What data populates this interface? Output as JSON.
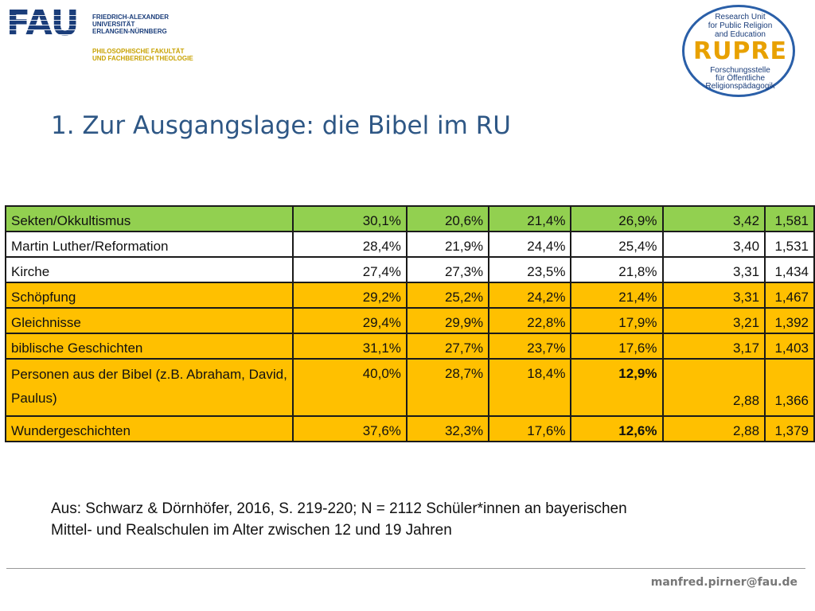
{
  "header": {
    "fau_mark": "FAU",
    "fau_name_lines": [
      "FRIEDRICH-ALEXANDER",
      "UNIVERSITÄT",
      "ERLANGEN-NÜRNBERG"
    ],
    "fau_faculty_lines": [
      "PHILOSOPHISCHE FAKULTÄT",
      "UND FACHBEREICH THEOLOGIE"
    ],
    "rupre_top_lines": [
      "Research Unit",
      "for Public Religion",
      "and Education"
    ],
    "rupre_word": "RUPRE",
    "rupre_bottom_lines": [
      "Forschungsstelle",
      "für Öffentliche",
      "Religionspädagogik"
    ]
  },
  "title": "1. Zur Ausgangslage: die Bibel im RU",
  "colors": {
    "green": "#92d050",
    "orange": "#ffc000",
    "white": "#ffffff",
    "title": "#2e5785"
  },
  "table": {
    "rows": [
      {
        "label": "Sekten/Okkultismus",
        "v1": "30,1%",
        "v2": "20,6%",
        "v3": "21,4%",
        "v4": "26,9%",
        "mean": "3,42",
        "sd": "1,581",
        "color": "green",
        "bold_v4": false
      },
      {
        "label": "Martin Luther/Reformation",
        "v1": "28,4%",
        "v2": "21,9%",
        "v3": "24,4%",
        "v4": "25,4%",
        "mean": "3,40",
        "sd": "1,531",
        "color": "white",
        "bold_v4": false
      },
      {
        "label": "Kirche",
        "v1": "27,4%",
        "v2": "27,3%",
        "v3": "23,5%",
        "v4": "21,8%",
        "mean": "3,31",
        "sd": "1,434",
        "color": "white",
        "bold_v4": false
      },
      {
        "label": "Schöpfung",
        "v1": "29,2%",
        "v2": "25,2%",
        "v3": "24,2%",
        "v4": "21,4%",
        "mean": "3,31",
        "sd": "1,467",
        "color": "orange",
        "bold_v4": false
      },
      {
        "label": "Gleichnisse",
        "v1": "29,4%",
        "v2": "29,9%",
        "v3": "22,8%",
        "v4": "17,9%",
        "mean": "3,21",
        "sd": "1,392",
        "color": "orange",
        "bold_v4": false
      },
      {
        "label": "biblische Geschichten",
        "v1": "31,1%",
        "v2": "27,7%",
        "v3": "23,7%",
        "v4": "17,6%",
        "mean": "3,17",
        "sd": "1,403",
        "color": "orange",
        "bold_v4": false
      },
      {
        "label": "Personen aus der Bibel (z.B. Abraham, David, Paulus)",
        "v1": "40,0%",
        "v2": "28,7%",
        "v3": "18,4%",
        "v4": "12,9%",
        "mean": "2,88",
        "sd": "1,366",
        "color": "orange",
        "bold_v4": true,
        "tall": true
      },
      {
        "label": "Wundergeschichten",
        "v1": "37,6%",
        "v2": "32,3%",
        "v3": "17,6%",
        "v4": "12,6%",
        "mean": "2,88",
        "sd": "1,379",
        "color": "orange",
        "bold_v4": true
      }
    ]
  },
  "source_lines": [
    "Aus: Schwarz & Dörnhöfer, 2016, S. 219-220; N = 2112 Schüler*innen an bayerischen",
    "Mittel- und Realschulen im Alter zwischen 12 und 19 Jahren"
  ],
  "footer": {
    "email": "manfred.pirner@fau.de"
  }
}
